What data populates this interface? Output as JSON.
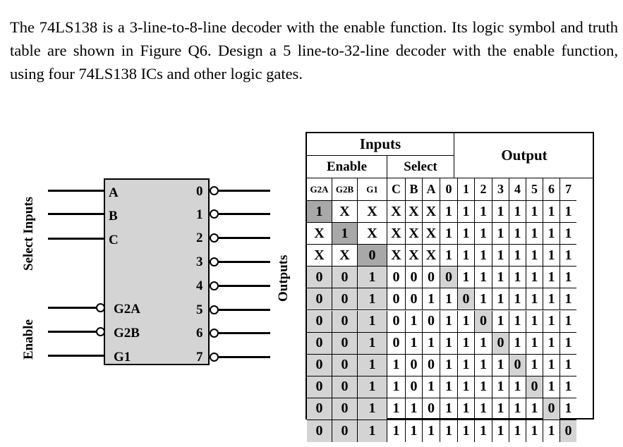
{
  "question": "The 74LS138 is a 3-line-to-8-line decoder with the enable function. Its logic symbol and truth table are shown in Figure Q6. Design a 5 line-to-32-line decoder with the enable function, using four 74LS138 ICs and other logic gates.",
  "symbol": {
    "select_label": "Select Inputs",
    "enable_label": "Enable",
    "outputs_label": "Outputs",
    "select_pins": [
      "A",
      "B",
      "C"
    ],
    "enable_pins": [
      "G2A",
      "G2B",
      "G1"
    ],
    "output_pins": [
      "0",
      "1",
      "2",
      "3",
      "4",
      "5",
      "6",
      "7"
    ]
  },
  "truth_table": {
    "header_inputs": "Inputs",
    "header_enable": "Enable",
    "header_select": "Select",
    "header_output": "Output",
    "columns": [
      "G2A",
      "G2B",
      "G1",
      "C",
      "B",
      "A",
      "0",
      "1",
      "2",
      "3",
      "4",
      "5",
      "6",
      "7"
    ],
    "rows": [
      [
        "1",
        "X",
        "X",
        "X",
        "X",
        "X",
        "1",
        "1",
        "1",
        "1",
        "1",
        "1",
        "1",
        "1"
      ],
      [
        "X",
        "1",
        "X",
        "X",
        "X",
        "X",
        "1",
        "1",
        "1",
        "1",
        "1",
        "1",
        "1",
        "1"
      ],
      [
        "X",
        "X",
        "0",
        "X",
        "X",
        "X",
        "1",
        "1",
        "1",
        "1",
        "1",
        "1",
        "1",
        "1"
      ],
      [
        "0",
        "0",
        "1",
        "0",
        "0",
        "0",
        "0",
        "1",
        "1",
        "1",
        "1",
        "1",
        "1",
        "1"
      ],
      [
        "0",
        "0",
        "1",
        "0",
        "0",
        "1",
        "1",
        "0",
        "1",
        "1",
        "1",
        "1",
        "1",
        "1"
      ],
      [
        "0",
        "0",
        "1",
        "0",
        "1",
        "0",
        "1",
        "1",
        "0",
        "1",
        "1",
        "1",
        "1",
        "1"
      ],
      [
        "0",
        "0",
        "1",
        "0",
        "1",
        "1",
        "1",
        "1",
        "1",
        "0",
        "1",
        "1",
        "1",
        "1"
      ],
      [
        "0",
        "0",
        "1",
        "1",
        "0",
        "0",
        "1",
        "1",
        "1",
        "1",
        "0",
        "1",
        "1",
        "1"
      ],
      [
        "0",
        "0",
        "1",
        "1",
        "0",
        "1",
        "1",
        "1",
        "1",
        "1",
        "1",
        "0",
        "1",
        "1"
      ],
      [
        "0",
        "0",
        "1",
        "1",
        "1",
        "0",
        "1",
        "1",
        "1",
        "1",
        "1",
        "1",
        "0",
        "1"
      ],
      [
        "0",
        "0",
        "1",
        "1",
        "1",
        "1",
        "1",
        "1",
        "1",
        "1",
        "1",
        "1",
        "1",
        "0"
      ]
    ],
    "shading": {
      "highlight_color": "#a8a8a8",
      "active_color": "#d4d4d4"
    }
  }
}
